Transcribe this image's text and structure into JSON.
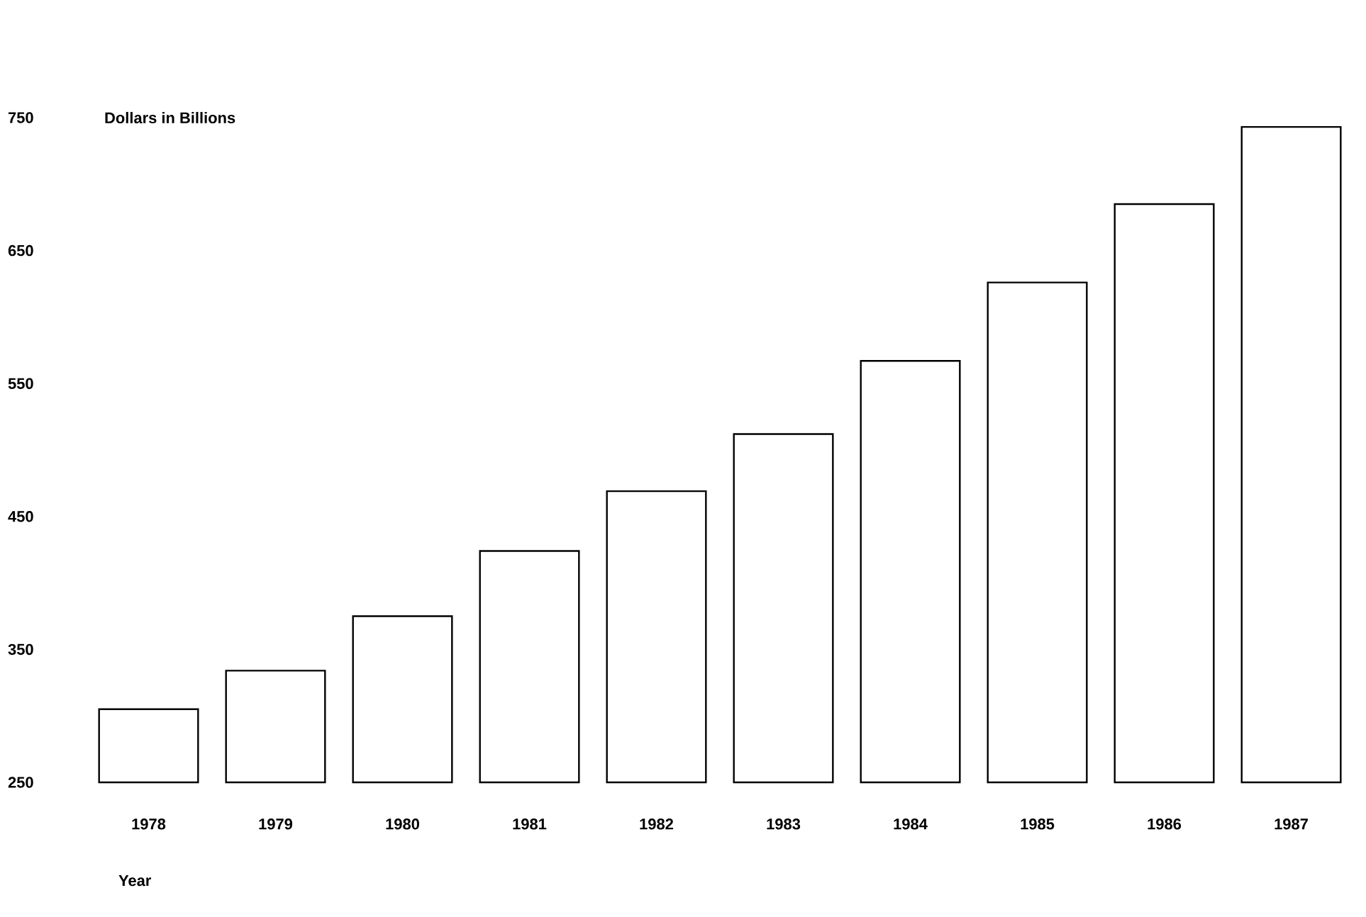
{
  "chart_data": {
    "type": "bar",
    "ylabel": "Dollars in Billions",
    "xlabel": "Year",
    "categories": [
      "1978",
      "1979",
      "1980",
      "1981",
      "1982",
      "1983",
      "1984",
      "1985",
      "1986",
      "1987"
    ],
    "values": [
      305,
      334,
      375,
      424,
      469,
      512,
      567,
      626,
      685,
      743
    ],
    "color": "#ffffff",
    "ylim": [
      250,
      750
    ],
    "yticks": [
      250,
      350,
      450,
      550,
      650,
      750
    ],
    "grid": false
  }
}
